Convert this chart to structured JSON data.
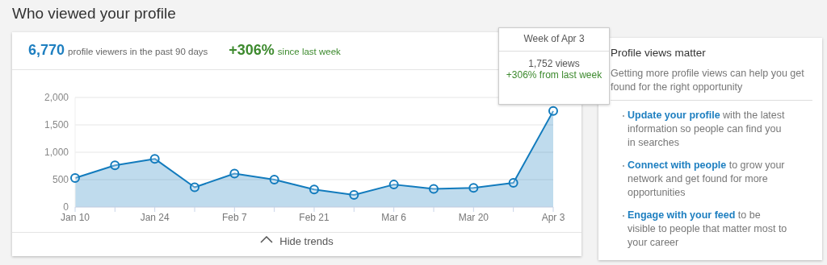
{
  "chart_data": [
    {
      "type": "area",
      "title": "Who viewed your profile",
      "categories": [
        "Jan 10",
        null,
        "Jan 24",
        null,
        "Feb 7",
        null,
        "Feb 21",
        null,
        "Mar 6",
        null,
        "Mar 20",
        null,
        "Apr 3"
      ],
      "series": [
        {
          "color": "#127bbd",
          "values": [
            530,
            760,
            880,
            360,
            610,
            500,
            320,
            220,
            410,
            330,
            350,
            440,
            1752
          ]
        }
      ],
      "ylim": [
        0,
        2000
      ],
      "yticks": [
        0,
        {
          "value": 500,
          "label": "500"
        },
        {
          "value": 1000,
          "label": "1,000"
        },
        {
          "value": 1500,
          "label": "1,500"
        },
        {
          "value": 2000,
          "label": "2,000"
        }
      ],
      "grid": "y",
      "marker": "circle",
      "annotations": [
        "6,770",
        "profile viewers in the past 90 days",
        "+306%",
        "since last week",
        "Week of Apr 3",
        "1,752 views",
        "+306% from last week",
        "Hide trends"
      ]
    },
    {
      "type": "other",
      "title": "Profile views matter",
      "subtitle": "Getting more profile views can help you get found for the right opportunity",
      "annotations": [
        "Update your profile",
        "with the latest information so people can find you in searches",
        "Connect with people",
        "to grow your network and get found for more opportunities",
        "Engage with your feed",
        "to be visible to people that matter most to your career"
      ]
    }
  ]
}
